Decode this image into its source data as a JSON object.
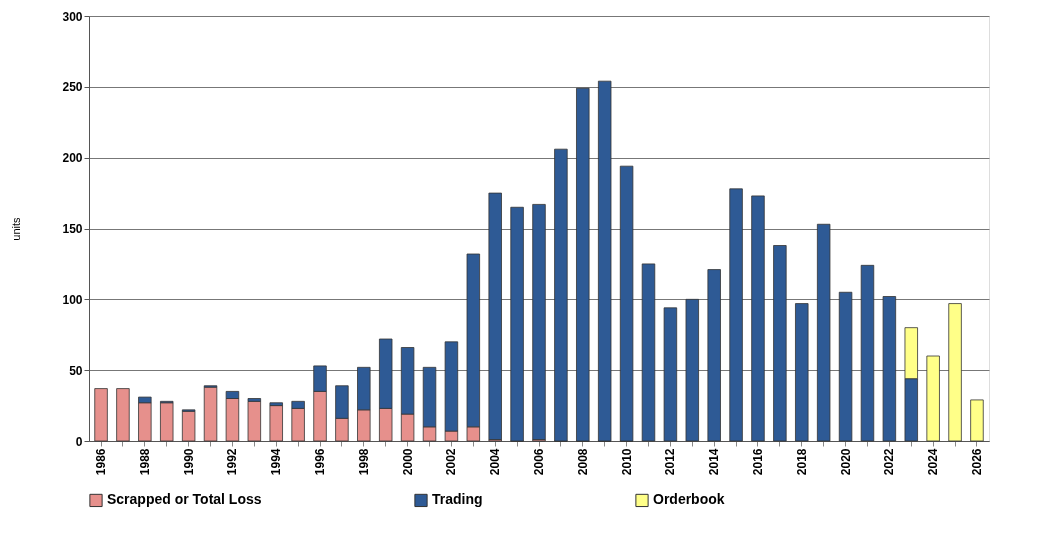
{
  "chart_data": {
    "type": "bar",
    "stacked": true,
    "ylabel": "units",
    "categories": [
      "1986",
      null,
      "1988",
      null,
      "1990",
      null,
      "1992",
      null,
      "1994",
      null,
      "1996",
      null,
      "1998",
      null,
      "2000",
      null,
      "2002",
      null,
      "2004",
      null,
      "2006",
      null,
      "2008",
      null,
      "2010",
      null,
      "2012",
      null,
      "2014",
      null,
      "2016",
      null,
      "2018",
      null,
      "2020",
      null,
      "2022",
      null,
      "2024",
      null,
      "2026"
    ],
    "series": [
      {
        "name": "Scrapped or Total Loss",
        "color": "#e6908c",
        "values": [
          37,
          37,
          27,
          27,
          21,
          38,
          30,
          28,
          25,
          23,
          35,
          16,
          22,
          23,
          19,
          10,
          7,
          10,
          1,
          0,
          1,
          0,
          0,
          0,
          0,
          null,
          null,
          null,
          null,
          null,
          null,
          null,
          null,
          null,
          null,
          null,
          null,
          null,
          null,
          null,
          null
        ]
      },
      {
        "name": "Trading",
        "color": "#2e5a95",
        "values": [
          null,
          null,
          4,
          1,
          1,
          1,
          5,
          2,
          2,
          5,
          18,
          23,
          30,
          49,
          47,
          42,
          63,
          122,
          174,
          165,
          166,
          206,
          249,
          254,
          194,
          125,
          94,
          100,
          121,
          178,
          173,
          138,
          97,
          153,
          105,
          124,
          102,
          44,
          null,
          null,
          null
        ]
      },
      {
        "name": "Orderbook",
        "color": "#ffff88",
        "values": [
          null,
          null,
          null,
          null,
          null,
          null,
          null,
          null,
          null,
          null,
          null,
          null,
          null,
          null,
          null,
          null,
          null,
          null,
          null,
          null,
          null,
          null,
          null,
          null,
          null,
          null,
          null,
          null,
          null,
          null,
          null,
          null,
          null,
          null,
          null,
          null,
          null,
          36,
          60,
          97,
          29
        ]
      }
    ],
    "ylim": [
      0,
      300
    ],
    "yticks": [
      0,
      50,
      100,
      150,
      200,
      250,
      300
    ],
    "grid": "y",
    "legend": "bottom"
  }
}
